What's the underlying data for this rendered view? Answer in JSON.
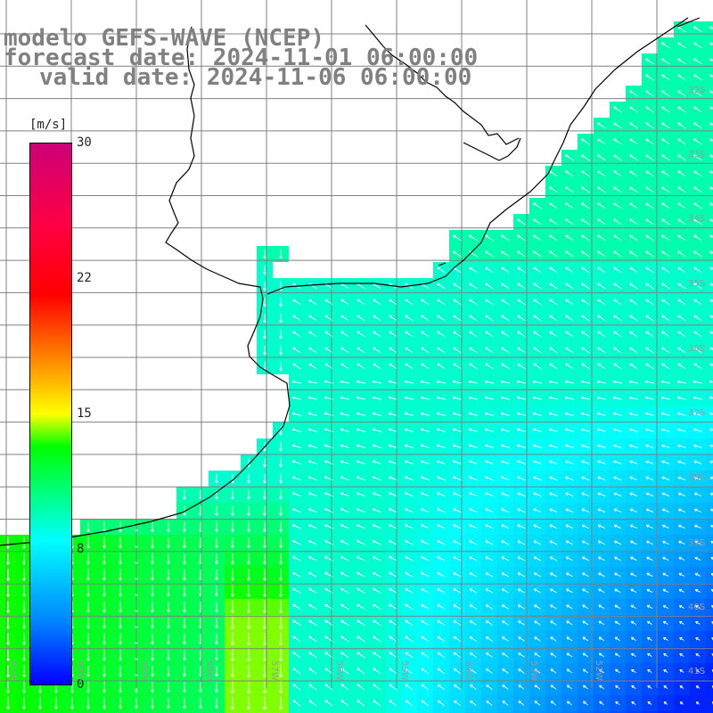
{
  "titles": {
    "line1": "modelo GEFS-WAVE (NCEP)",
    "line2": "forecast date: 2024-11-01 06:00:00",
    "line3": "valid date: 2024-11-06 06:00:00"
  },
  "colorbar": {
    "unit": "[m/s]",
    "ticks": [
      "30",
      "22",
      "15",
      "8",
      "0"
    ],
    "range": [
      0,
      30
    ]
  },
  "lat_labels": [
    "32S",
    "33S",
    "34S",
    "35S",
    "36S",
    "37S",
    "38S",
    "39S",
    "40S",
    "41S"
  ],
  "lon_labels": [
    "61W",
    "60W",
    "59W",
    "58W",
    "57W",
    "56W",
    "55W",
    "54W",
    "53W",
    "52W"
  ],
  "colors": {
    "land": "#ffffff",
    "grid": "#808080",
    "vector": "#ffffff",
    "coast": "#000000"
  }
}
